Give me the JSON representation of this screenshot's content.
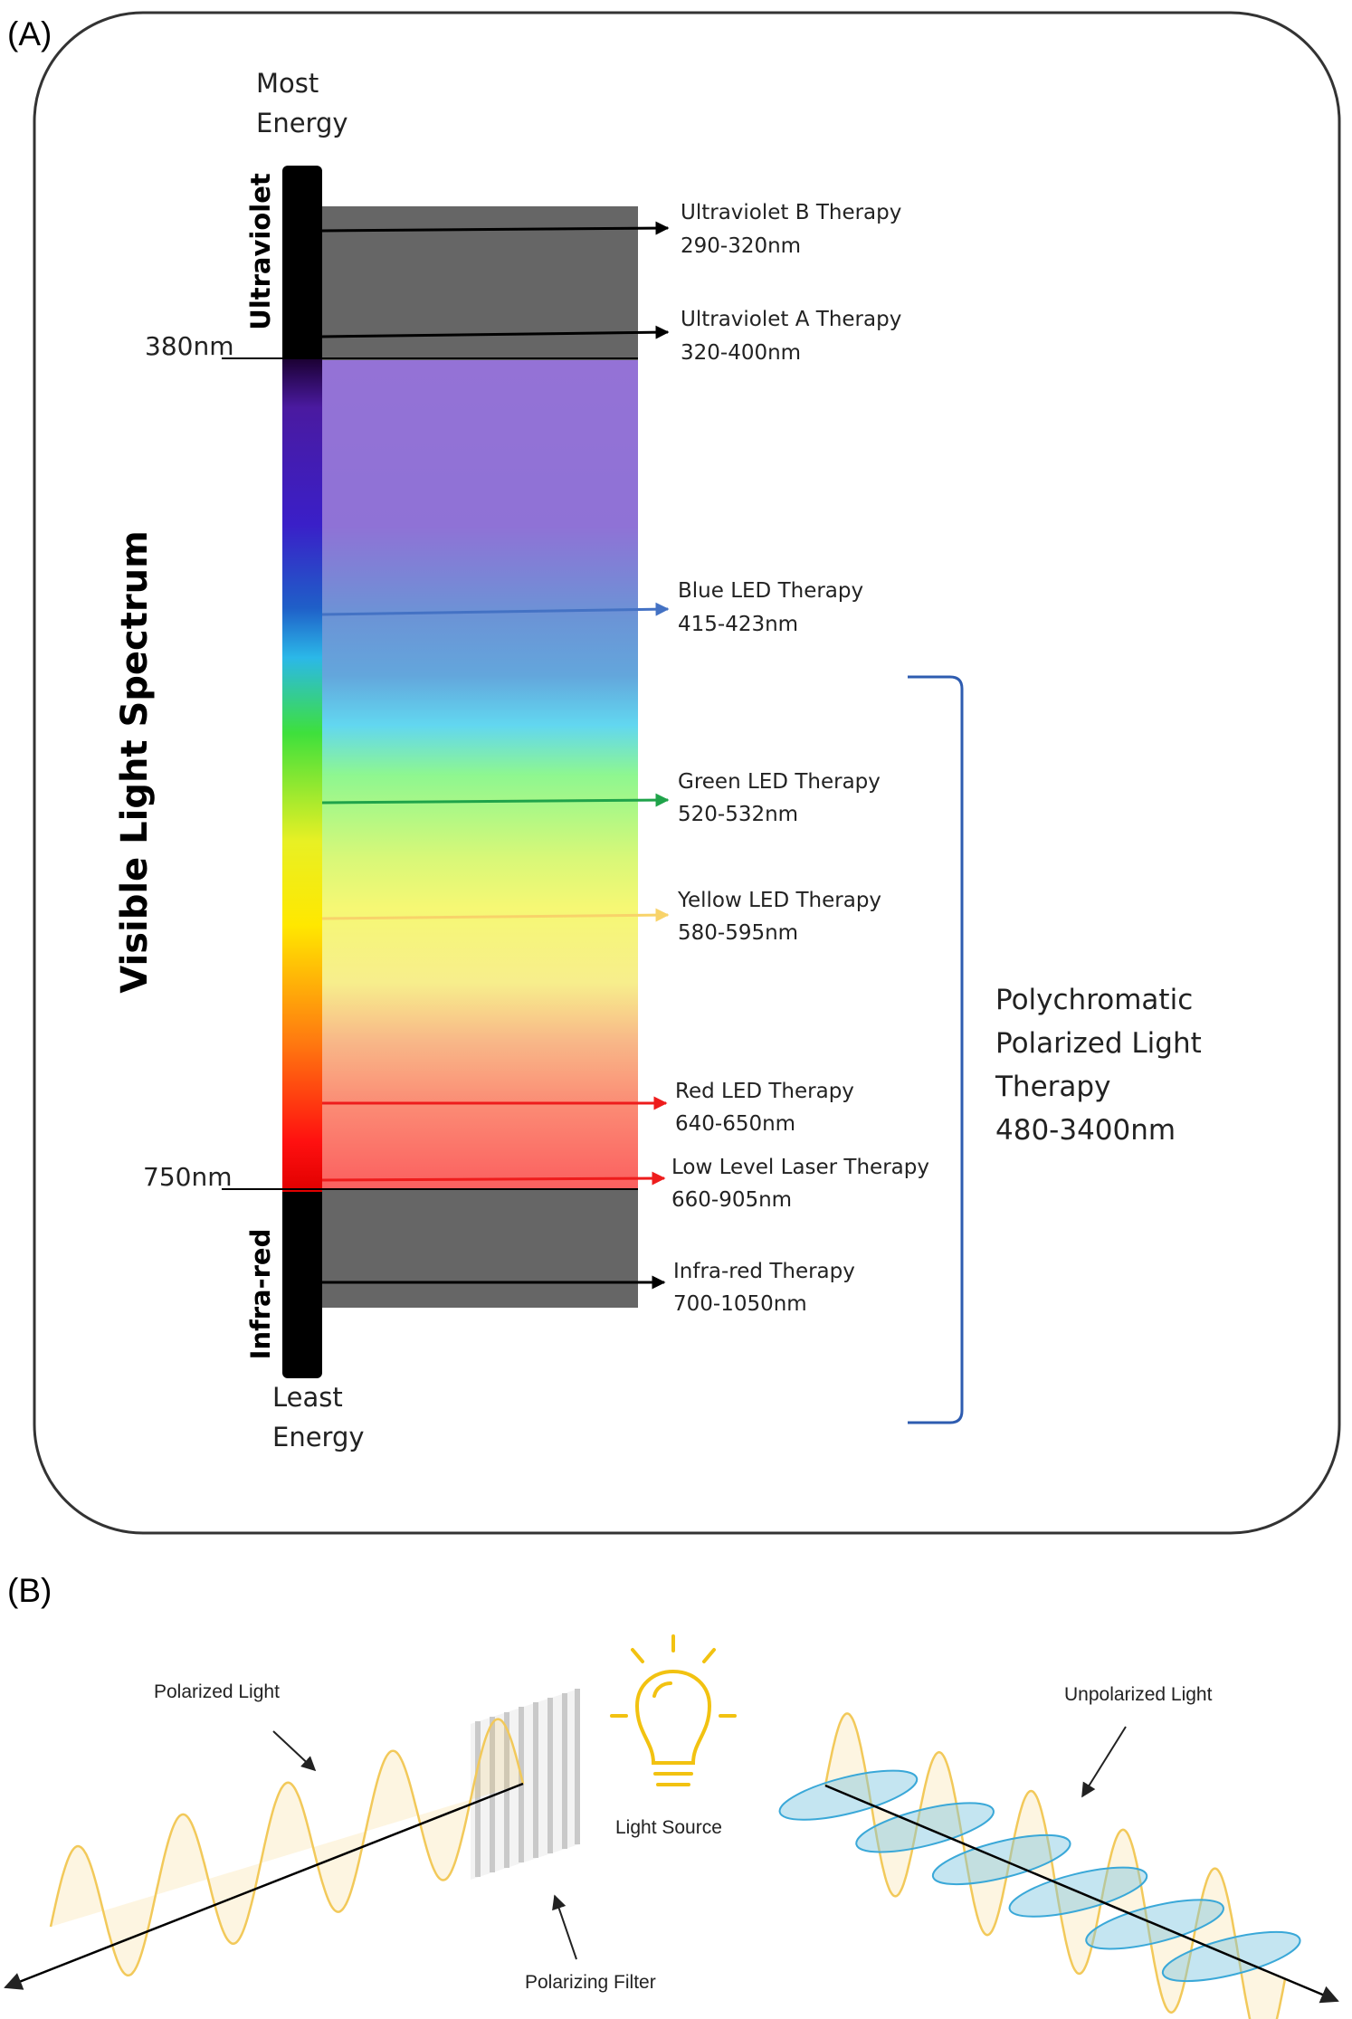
{
  "panel_a": {
    "label": "(A)",
    "most_energy": [
      "Most",
      "Energy"
    ],
    "least_energy": [
      "Least",
      "Energy"
    ],
    "uv_label": "Ultraviolet",
    "ir_label": "Infra-red",
    "visible_label": "Visible  Light Spectrum",
    "nm_380": "380nm",
    "nm_750": "750nm",
    "therapies": [
      {
        "name": "Ultraviolet B Therapy",
        "range": "290-320nm",
        "color": "#000000"
      },
      {
        "name": "Ultraviolet A Therapy",
        "range": "320-400nm",
        "color": "#000000"
      },
      {
        "name": "Blue LED Therapy",
        "range": "415-423nm",
        "color": "#4472c4"
      },
      {
        "name": "Green LED Therapy",
        "range": "520-532nm",
        "color": "#1fa34a"
      },
      {
        "name": "Yellow LED Therapy",
        "range": "580-595nm",
        "color": "#f8d36a"
      },
      {
        "name": "Red LED Therapy",
        "range": "640-650nm",
        "color": "#ee1c1c"
      },
      {
        "name": "Low Level Laser Therapy",
        "range": "660-905nm",
        "color": "#ee1c1c"
      },
      {
        "name": "Infra-red Therapy",
        "range": "700-1050nm",
        "color": "#000000"
      }
    ],
    "polychromatic": [
      "Polychromatic",
      "Polarized Light",
      "Therapy",
      "480-3400nm"
    ],
    "bracket_color": "#2e5cb0"
  },
  "panel_b": {
    "label": "(B)",
    "polarized_light": "Polarized Light",
    "unpolarized_light": "Unpolarized Light",
    "light_source": "Light Source",
    "polarizing_filter": "Polarizing Filter",
    "wave_color": "#f2c95a",
    "ellipse_color": "#7cc6e0"
  }
}
